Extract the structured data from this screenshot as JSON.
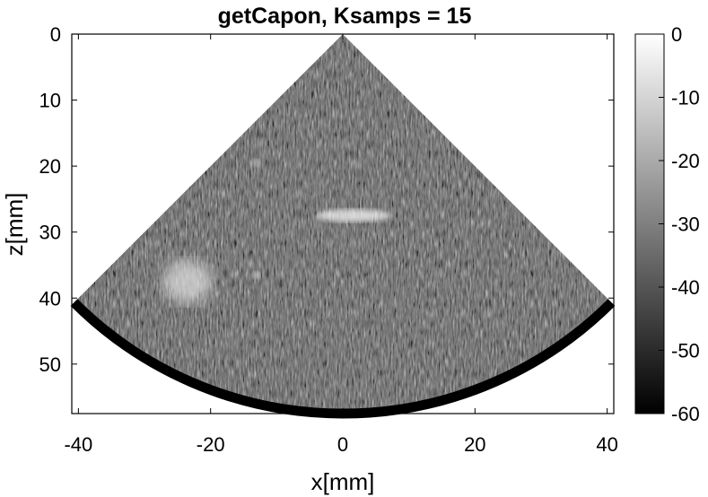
{
  "chart_data": {
    "type": "heatmap",
    "title": "getCapon, Ksamps = 15",
    "xlabel": "x[mm]",
    "ylabel": "z[mm]",
    "xlim": [
      -41,
      41
    ],
    "ylim": [
      0,
      57.5
    ],
    "y_reversed": true,
    "xticks": [
      -40,
      -20,
      0,
      20,
      40
    ],
    "yticks": [
      0,
      10,
      20,
      30,
      40,
      50
    ],
    "colorbar": {
      "label": "",
      "colormap": "gray",
      "range": [
        -60,
        0
      ],
      "ticks": [
        0,
        -10,
        -20,
        -30,
        -40,
        -50,
        -60
      ]
    },
    "sector": {
      "apex": [
        0,
        0
      ],
      "half_angle_deg": 45,
      "max_depth_mm": 57.5
    },
    "features": [
      {
        "kind": "bright-region",
        "x_mm": -23.5,
        "z_mm": 37.5,
        "level_db": -8
      },
      {
        "kind": "bright-streak",
        "x_mm": 1.5,
        "z_mm": 27.5,
        "level_db": -5
      },
      {
        "kind": "point-target",
        "x_mm": -13,
        "z_mm": 36.5,
        "level_db": -10
      },
      {
        "kind": "point-target",
        "x_mm": -13,
        "z_mm": 19.5,
        "level_db": -15
      }
    ],
    "grid": false,
    "colors": {
      "background": "#ffffff",
      "axis": "#000000",
      "low": "#000000",
      "high": "#ffffff"
    }
  }
}
